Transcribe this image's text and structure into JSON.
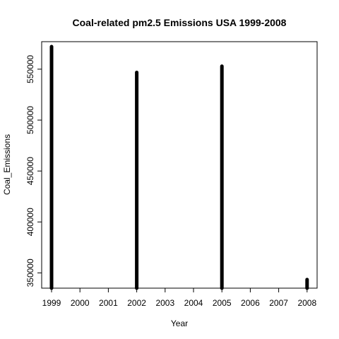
{
  "chart_data": {
    "type": "bar",
    "title": "Coal-related pm2.5 Emissions USA 1999-2008",
    "xlabel": "Year",
    "ylabel": "Coal_Emissions",
    "categories": [
      "1999",
      "2002",
      "2005",
      "2008"
    ],
    "values": [
      572126.5,
      546789.2,
      552881.5,
      343432.2
    ],
    "x_ticks": [
      "1999",
      "2000",
      "2001",
      "2002",
      "2003",
      "2004",
      "2005",
      "2006",
      "2007",
      "2008"
    ],
    "y_ticks": [
      "350000",
      "400000",
      "450000",
      "500000",
      "550000"
    ],
    "ylim": [
      335000,
      577000
    ],
    "bar_color": "#000000",
    "grid": false,
    "legend": "none"
  }
}
